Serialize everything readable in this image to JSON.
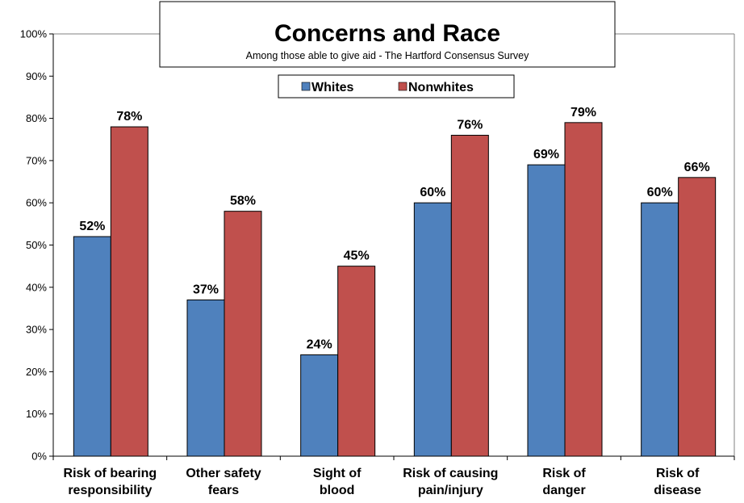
{
  "chart_data": {
    "type": "bar",
    "title": "Concerns and Race",
    "subtitle": "Among those able to give aid - The Hartford Consensus Survey",
    "xlabel": "",
    "ylabel": "",
    "ylim": [
      0,
      100
    ],
    "yticks": [
      "0%",
      "10%",
      "20%",
      "30%",
      "40%",
      "50%",
      "60%",
      "70%",
      "80%",
      "90%",
      "100%"
    ],
    "categories": [
      [
        "Risk of bearing",
        "responsibility"
      ],
      [
        "Other safety",
        "fears"
      ],
      [
        "Sight of",
        "blood"
      ],
      [
        "Risk of causing",
        "pain/injury"
      ],
      [
        "Risk of",
        "danger"
      ],
      [
        "Risk of",
        "disease"
      ]
    ],
    "series": [
      {
        "name": "Whites",
        "color": "#4f81bd",
        "values": [
          52,
          37,
          24,
          60,
          69,
          60
        ],
        "labels": [
          "52%",
          "37%",
          "24%",
          "60%",
          "69%",
          "60%"
        ]
      },
      {
        "name": "Nonwhites",
        "color": "#c0504d",
        "values": [
          78,
          58,
          45,
          76,
          79,
          66
        ],
        "labels": [
          "78%",
          "58%",
          "45%",
          "76%",
          "79%",
          "66%"
        ]
      }
    ],
    "legend_position": "top-center",
    "grid": false
  }
}
